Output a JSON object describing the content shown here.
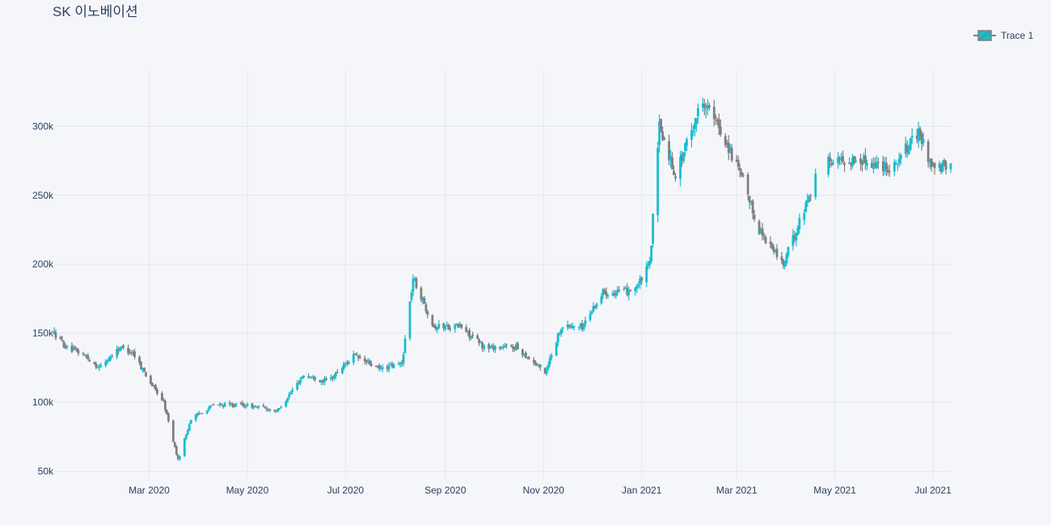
{
  "chart_data": {
    "type": "candlestick",
    "title": "SK 이노베이션",
    "xlabel": "",
    "ylabel": "",
    "x_range": [
      "2020-01-02",
      "2021-07-12"
    ],
    "ylim": [
      45000,
      340000
    ],
    "grid": true,
    "legend": {
      "position": "top-right",
      "entries": [
        "Trace 1"
      ]
    },
    "colors": {
      "increasing": "#17becf",
      "decreasing": "#7f7f7f",
      "grid": "#e3e6ee",
      "background": "#f5f6fa"
    },
    "x_ticks": [
      {
        "date": "2020-03-01",
        "label": "Mar 2020"
      },
      {
        "date": "2020-05-01",
        "label": "May 2020"
      },
      {
        "date": "2020-07-01",
        "label": "Jul 2020"
      },
      {
        "date": "2020-09-01",
        "label": "Sep 2020"
      },
      {
        "date": "2020-11-01",
        "label": "Nov 2020"
      },
      {
        "date": "2021-01-01",
        "label": "Jan 2021"
      },
      {
        "date": "2021-03-01",
        "label": "Mar 2021"
      },
      {
        "date": "2021-05-01",
        "label": "May 2021"
      },
      {
        "date": "2021-07-01",
        "label": "Jul 2021"
      }
    ],
    "y_ticks": [
      {
        "value": 50000,
        "label": "50k"
      },
      {
        "value": 100000,
        "label": "100k"
      },
      {
        "value": 150000,
        "label": "150k"
      },
      {
        "value": 200000,
        "label": "200k"
      },
      {
        "value": 250000,
        "label": "250k"
      },
      {
        "value": 300000,
        "label": "300k"
      }
    ],
    "series": [
      {
        "name": "Trace 1",
        "anchors": [
          [
            "2020-01-02",
            150000
          ],
          [
            "2020-01-10",
            139000
          ],
          [
            "2020-01-20",
            135000
          ],
          [
            "2020-01-30",
            125000
          ],
          [
            "2020-02-12",
            140000
          ],
          [
            "2020-02-20",
            136000
          ],
          [
            "2020-03-02",
            114000
          ],
          [
            "2020-03-10",
            100000
          ],
          [
            "2020-03-19",
            58000
          ],
          [
            "2020-03-27",
            88000
          ],
          [
            "2020-04-10",
            98000
          ],
          [
            "2020-04-29",
            98000
          ],
          [
            "2020-05-20",
            94000
          ],
          [
            "2020-06-05",
            120000
          ],
          [
            "2020-06-20",
            115000
          ],
          [
            "2020-07-06",
            134000
          ],
          [
            "2020-07-22",
            124000
          ],
          [
            "2020-08-05",
            128000
          ],
          [
            "2020-08-12",
            190000
          ],
          [
            "2020-08-25",
            155000
          ],
          [
            "2020-09-10",
            155000
          ],
          [
            "2020-09-25",
            140000
          ],
          [
            "2020-10-15",
            140000
          ],
          [
            "2020-11-02",
            122000
          ],
          [
            "2020-11-12",
            155000
          ],
          [
            "2020-11-25",
            155000
          ],
          [
            "2020-12-08",
            180000
          ],
          [
            "2020-12-22",
            180000
          ],
          [
            "2020-12-30",
            185000
          ],
          [
            "2021-01-06",
            200000
          ],
          [
            "2021-01-12",
            300000
          ],
          [
            "2021-01-22",
            265000
          ],
          [
            "2021-02-08",
            320000
          ],
          [
            "2021-02-22",
            290000
          ],
          [
            "2021-03-05",
            260000
          ],
          [
            "2021-03-15",
            225000
          ],
          [
            "2021-03-30",
            200000
          ],
          [
            "2021-04-12",
            240000
          ],
          [
            "2021-04-22",
            275000
          ],
          [
            "2021-05-10",
            275000
          ],
          [
            "2021-05-20",
            275000
          ],
          [
            "2021-06-05",
            270000
          ],
          [
            "2021-06-22",
            295000
          ],
          [
            "2021-07-01",
            270000
          ],
          [
            "2021-07-12",
            270000
          ]
        ],
        "gaps": [
          [
            "2021-04-20",
            "2021-04-26"
          ]
        ]
      }
    ]
  }
}
